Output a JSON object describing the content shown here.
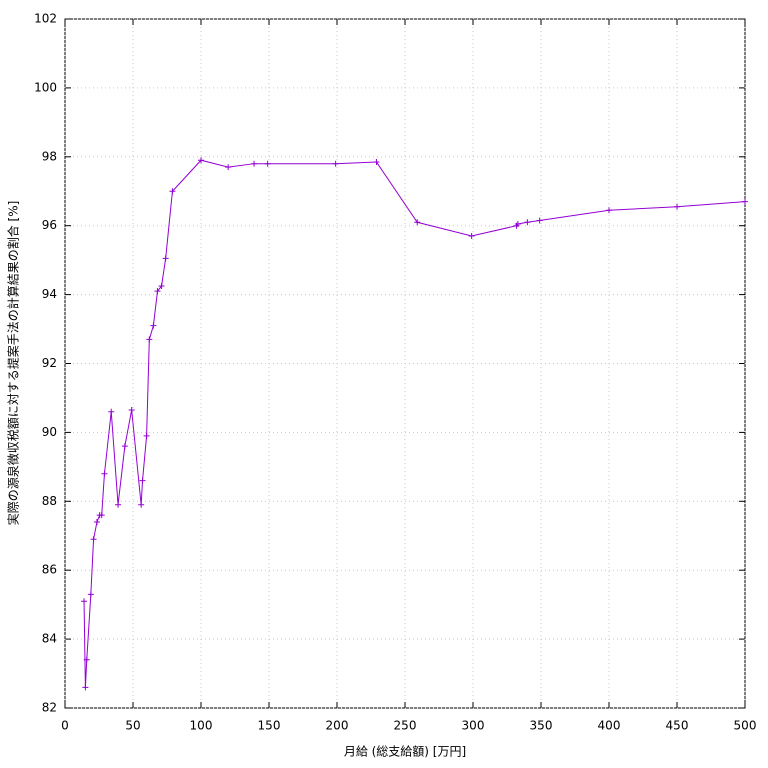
{
  "chart_data": {
    "type": "line",
    "xlabel": "月給 (総支給額) [万円]",
    "ylabel": "実際の源泉徴収税額に対する提案手法の計算結果の割合 [%]",
    "series": [
      {
        "color": "#9400d3",
        "x": [
          14,
          15,
          16,
          19,
          21,
          23.5,
          25.5,
          27,
          29,
          34,
          39,
          44,
          49,
          56,
          57,
          60,
          62,
          65,
          68,
          71,
          74,
          79,
          100,
          120,
          139,
          149,
          199,
          229,
          259,
          299,
          332,
          333,
          340,
          349,
          400,
          450,
          500
        ],
        "values": [
          85.1,
          82.6,
          83.4,
          85.3,
          86.9,
          87.4,
          87.6,
          87.6,
          88.8,
          90.6,
          87.9,
          89.6,
          90.65,
          87.9,
          88.6,
          89.9,
          92.7,
          93.1,
          94.1,
          94.25,
          95.05,
          97.0,
          97.9,
          97.7,
          97.8,
          97.8,
          97.8,
          97.85,
          96.1,
          95.7,
          96.0,
          96.05,
          96.1,
          96.15,
          96.45,
          96.55,
          96.7
        ]
      }
    ],
    "xlim": [
      0,
      500
    ],
    "xticks": [
      0,
      50,
      100,
      150,
      200,
      250,
      300,
      350,
      400,
      450,
      500
    ],
    "ylim": [
      82,
      102
    ],
    "yticks": [
      82,
      84,
      86,
      88,
      90,
      92,
      94,
      96,
      98,
      100,
      102
    ],
    "grid": true
  }
}
